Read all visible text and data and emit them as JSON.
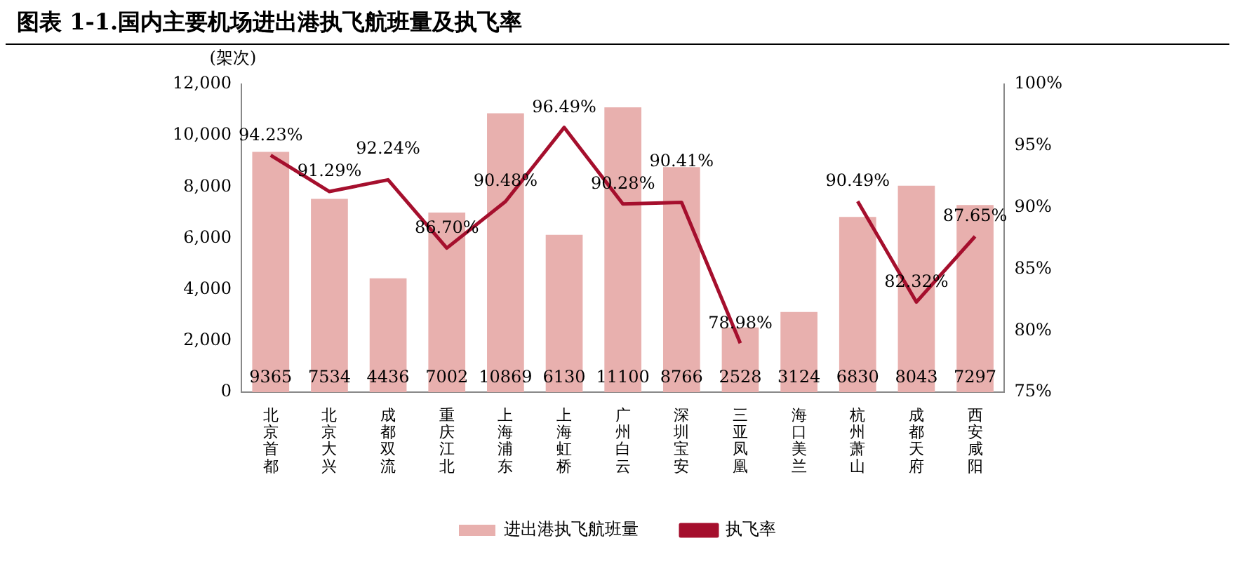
{
  "chart_data": {
    "type": "bar",
    "title": "图表 1-1.国内主要机场进出港执飞航班量及执飞率",
    "ylabel": "(架次)",
    "categories": [
      "北京首都",
      "北京大兴",
      "成都双流",
      "重庆江北",
      "上海浦东",
      "上海虹桥",
      "广州白云",
      "深圳宝安",
      "三亚凤凰",
      "海口美兰",
      "杭州萧山",
      "成都天府",
      "西安咸阳"
    ],
    "series": [
      {
        "name": "进出港执飞航班量",
        "color": "#e8b0ae",
        "values": [
          9365,
          7534,
          4436,
          7002,
          10869,
          6130,
          11100,
          8766,
          2528,
          3124,
          6830,
          8043,
          7297
        ]
      },
      {
        "name": "执飞率",
        "type": "line",
        "axis": "y2",
        "color": "#a50f2d",
        "values": [
          94.23,
          91.29,
          92.24,
          86.7,
          90.48,
          96.49,
          90.28,
          90.41,
          78.98,
          null,
          90.49,
          82.32,
          87.65
        ],
        "value_labels": [
          "94.23%",
          "91.29%",
          "92.24%",
          "86.70%",
          "90.48%",
          "96.49%",
          "90.28%",
          "90.41%",
          "78.98%",
          null,
          "90.49%",
          "82.32%",
          "87.65%"
        ]
      }
    ],
    "ylim": [
      0,
      12000
    ],
    "yticks": [
      0,
      {
        "value": 2000,
        "label": "2,000"
      },
      {
        "value": 4000,
        "label": "4,000"
      },
      {
        "value": 6000,
        "label": "6,000"
      },
      {
        "value": 8000,
        "label": "8,000"
      },
      {
        "value": 10000,
        "label": "10,000"
      },
      {
        "value": 12000,
        "label": "12,000"
      }
    ],
    "y2lim": [
      75,
      100
    ],
    "y2ticks": [
      {
        "value": 75,
        "label": "75%"
      },
      {
        "value": 80,
        "label": "80%"
      },
      {
        "value": 85,
        "label": "85%"
      },
      {
        "value": 90,
        "label": "90%"
      },
      {
        "value": 95,
        "label": "95%"
      },
      {
        "value": 100,
        "label": "100%"
      }
    ],
    "data_labels": true,
    "grid": false,
    "legend": "bottom",
    "marker": "none",
    "line_style": "solid"
  }
}
